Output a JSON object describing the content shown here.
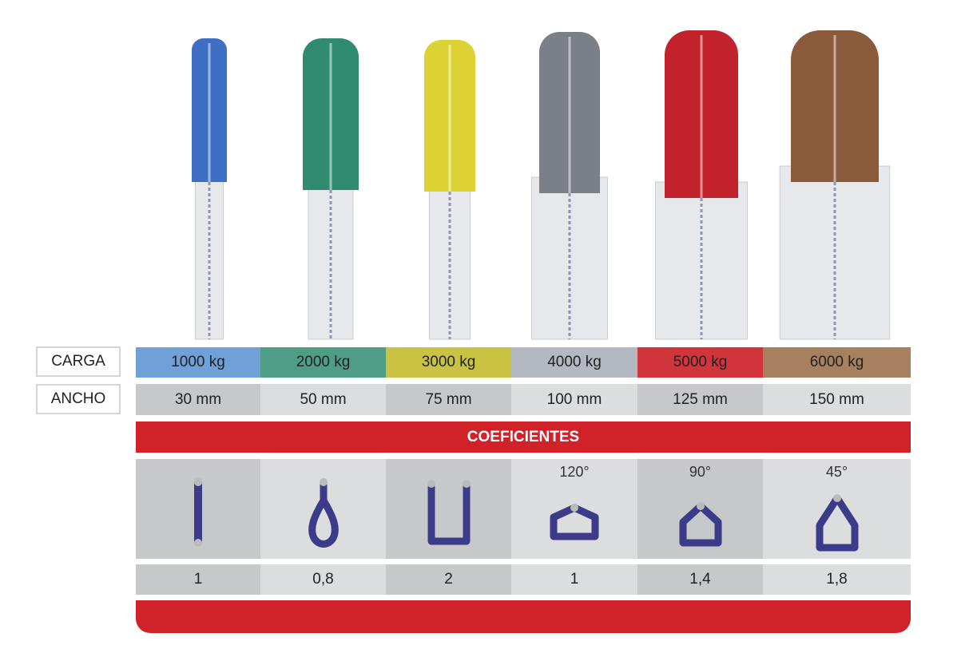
{
  "labels": {
    "carga": "CARGA",
    "ancho": "ANCHO"
  },
  "columns": [
    {
      "carga": "1000 kg",
      "ancho": "30 mm",
      "color": "#6fa0d8",
      "sling_color": "#3f6fc4",
      "configuration_icon": "straight-sling-icon",
      "angle": "",
      "coeficiente": "1"
    },
    {
      "carga": "2000 kg",
      "ancho": "50 mm",
      "color": "#4e9d86",
      "sling_color": "#2f8a6e",
      "configuration_icon": "choke-loop-sling-icon",
      "angle": "",
      "coeficiente": "0,8"
    },
    {
      "carga": "3000 kg",
      "ancho": "75 mm",
      "color": "#c9c242",
      "sling_color": "#dcd234",
      "configuration_icon": "basket-u-sling-icon",
      "angle": "",
      "coeficiente": "2"
    },
    {
      "carga": "4000 kg",
      "ancho": "100 mm",
      "color": "#b4b9c1",
      "sling_color": "#7a7f88",
      "configuration_icon": "basket-120-degree-icon",
      "angle": "120°",
      "coeficiente": "1"
    },
    {
      "carga": "5000 kg",
      "ancho": "125 mm",
      "color": "#d2343c",
      "sling_color": "#c2222c",
      "configuration_icon": "basket-90-degree-icon",
      "angle": "90°",
      "coeficiente": "1,4"
    },
    {
      "carga": "6000 kg",
      "ancho": "150 mm",
      "color": "#a7805f",
      "sling_color": "#8a5a3a",
      "configuration_icon": "basket-45-degree-icon",
      "angle": "45°",
      "coeficiente": "1,8"
    }
  ],
  "coeficientes_title": "COEFICIENTES",
  "colors": {
    "accent_red": "#d1222a",
    "icon_blue": "#3b3b8a"
  }
}
